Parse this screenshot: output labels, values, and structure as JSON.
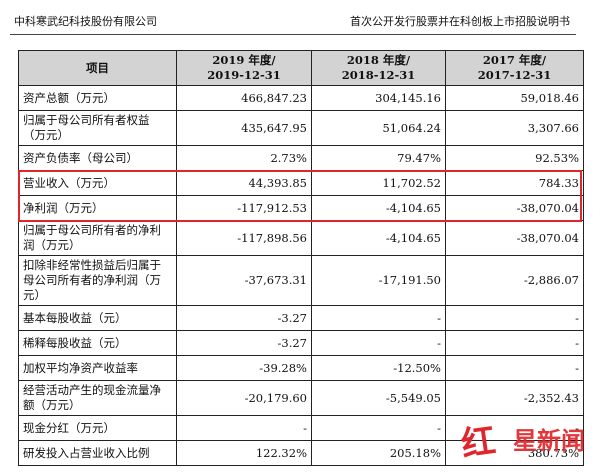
{
  "header": {
    "company": "中科寒武纪科技股份有限公司",
    "document": "首次公开发行股票并在科创板上市招股说明书"
  },
  "table": {
    "columns": [
      "项目",
      "2019 年度/\n2019-12-31",
      "2018 年度/\n2018-12-31",
      "2017 年度/\n2017-12-31"
    ],
    "rows": [
      {
        "name": "资产总额（万元）",
        "v2019": "466,847.23",
        "v2018": "304,145.16",
        "v2017": "59,018.46"
      },
      {
        "name": "归属于母公司所有者权益（万元）",
        "v2019": "435,647.95",
        "v2018": "51,064.24",
        "v2017": "3,307.66"
      },
      {
        "name": "资产负债率（母公司）",
        "v2019": "2.73%",
        "v2018": "79.47%",
        "v2017": "92.53%"
      },
      {
        "name": "营业收入（万元）",
        "v2019": "44,393.85",
        "v2018": "11,702.52",
        "v2017": "784.33"
      },
      {
        "name": "净利润（万元）",
        "v2019": "-117,912.53",
        "v2018": "-4,104.65",
        "v2017": "-38,070.04"
      },
      {
        "name": "归属于母公司所有者的净利润（万元）",
        "v2019": "-117,898.56",
        "v2018": "-4,104.65",
        "v2017": "-38,070.04"
      },
      {
        "name": "扣除非经常性损益后归属于母公司所有者的净利润（万元）",
        "v2019": "-37,673.31",
        "v2018": "-17,191.50",
        "v2017": "-2,886.07"
      },
      {
        "name": "基本每股收益（元）",
        "v2019": "-3.27",
        "v2018": "-",
        "v2017": "-"
      },
      {
        "name": "稀释每股收益（元）",
        "v2019": "-3.27",
        "v2018": "-",
        "v2017": "-"
      },
      {
        "name": "加权平均净资产收益率",
        "v2019": "-39.28%",
        "v2018": "-12.50%",
        "v2017": "-"
      },
      {
        "name": "经营活动产生的现金流量净额（万元）",
        "v2019": "-20,179.60",
        "v2018": "-5,549.05",
        "v2017": "-2,352.43"
      },
      {
        "name": "现金分红（万元）",
        "v2019": "-",
        "v2018": "-",
        "v2017": "-"
      },
      {
        "name": "研发投入占营业收入比例",
        "v2019": "122.32%",
        "v2018": "205.18%",
        "v2017": "380.73%"
      }
    ]
  },
  "highlight": {
    "color": "#e0262b",
    "rows": [
      "营业收入（万元）",
      "净利润（万元）"
    ]
  },
  "watermark": {
    "text": "红星新闻",
    "icon": "red-star-logo-icon",
    "color": "#e0262b"
  }
}
